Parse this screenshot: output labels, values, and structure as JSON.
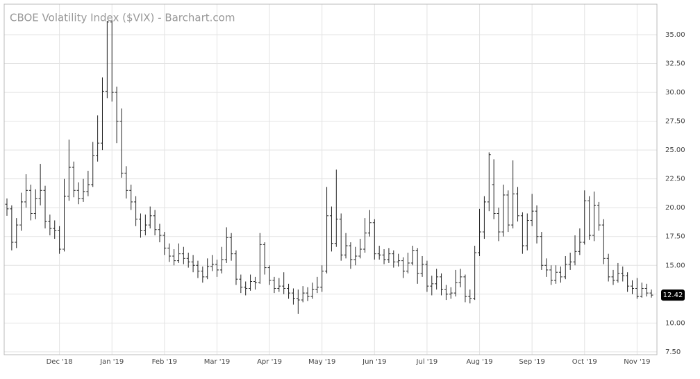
{
  "chart_data": {
    "type": "ohlc",
    "title": "CBOE Volatility Index ($VIX) - Barchart.com",
    "color": "#222222",
    "grid": true,
    "last_color": "#000000",
    "categories": [
      null,
      null,
      null,
      null,
      null,
      null,
      null,
      null,
      null,
      null,
      null,
      "Dec '18",
      null,
      null,
      null,
      null,
      null,
      null,
      null,
      null,
      null,
      null,
      "Jan '19",
      null,
      null,
      null,
      null,
      null,
      null,
      null,
      null,
      null,
      null,
      "Feb '19",
      null,
      null,
      null,
      null,
      null,
      null,
      null,
      null,
      null,
      null,
      "Mar '19",
      null,
      null,
      null,
      null,
      null,
      null,
      null,
      null,
      null,
      null,
      "Apr '19",
      null,
      null,
      null,
      null,
      null,
      null,
      null,
      null,
      null,
      null,
      "May '19",
      null,
      null,
      null,
      null,
      null,
      null,
      null,
      null,
      null,
      null,
      "Jun '19",
      null,
      null,
      null,
      null,
      null,
      null,
      null,
      null,
      null,
      null,
      "Jul '19",
      null,
      null,
      null,
      null,
      null,
      null,
      null,
      null,
      null,
      null,
      "Aug '19",
      null,
      null,
      null,
      null,
      null,
      null,
      null,
      null,
      null,
      null,
      "Sep '19",
      null,
      null,
      null,
      null,
      null,
      null,
      null,
      null,
      null,
      null,
      "Oct '19",
      null,
      null,
      null,
      null,
      null,
      null,
      null,
      null,
      null,
      null,
      "Nov '19",
      null,
      null,
      null
    ],
    "open": [
      20.3,
      19.9,
      17.0,
      18.5,
      20.5,
      21.5,
      19.5,
      20.8,
      21.5,
      18.8,
      18.2,
      18.0,
      16.4,
      21.0,
      23.5,
      21.5,
      20.8,
      21.4,
      22.0,
      24.5,
      25.6,
      30.1,
      36.1,
      30.0,
      27.5,
      23.0,
      21.5,
      20.5,
      19.0,
      18.0,
      18.5,
      19.3,
      18.1,
      17.6,
      16.5,
      15.8,
      15.4,
      16.0,
      15.6,
      15.3,
      15.0,
      14.5,
      14.0,
      14.9,
      15.1,
      14.6,
      15.5,
      17.4,
      16.0,
      13.8,
      13.1,
      13.0,
      13.6,
      13.5,
      16.8,
      14.8,
      13.7,
      13.0,
      13.2,
      13.0,
      12.6,
      12.1,
      12.0,
      12.6,
      12.3,
      12.9,
      13.1,
      14.5,
      19.3,
      16.9,
      19.0,
      15.9,
      16.7,
      15.5,
      15.8,
      16.4,
      17.8,
      18.7,
      16.0,
      15.9,
      15.5,
      16.0,
      15.3,
      15.4,
      14.5,
      15.2,
      16.3,
      14.3,
      15.1,
      13.2,
      13.4,
      14.0,
      12.9,
      12.5,
      12.6,
      13.5,
      14.0,
      12.3,
      12.1,
      16.1,
      17.9,
      20.5,
      22.0,
      19.5,
      17.9,
      21.1,
      18.5,
      21.2,
      19.3,
      16.7,
      18.9,
      19.7,
      17.5,
      15.0,
      14.6,
      13.7,
      14.4,
      14.0,
      15.1,
      15.3,
      16.2,
      17.0,
      20.6,
      17.6,
      20.2,
      18.5,
      15.6,
      14.0,
      13.7,
      14.3,
      14.1,
      13.2,
      13.0,
      12.3,
      13.0,
      12.6
    ],
    "high": [
      20.8,
      20.2,
      19.1,
      21.3,
      22.9,
      22.0,
      21.6,
      23.8,
      21.9,
      19.4,
      18.9,
      18.4,
      22.5,
      25.9,
      24.0,
      22.2,
      22.5,
      23.2,
      25.7,
      28.0,
      31.3,
      36.2,
      36.3,
      30.5,
      28.6,
      23.6,
      22.0,
      21.0,
      19.5,
      19.4,
      20.1,
      19.8,
      18.6,
      17.9,
      16.9,
      16.4,
      16.9,
      16.6,
      16.1,
      15.9,
      15.4,
      14.9,
      15.6,
      15.9,
      15.5,
      16.6,
      18.3,
      17.8,
      16.3,
      14.2,
      13.6,
      14.2,
      14.0,
      17.8,
      17.0,
      15.0,
      14.0,
      13.9,
      14.4,
      13.4,
      13.0,
      12.9,
      13.2,
      13.1,
      13.5,
      14.0,
      15.0,
      21.8,
      20.1,
      23.3,
      19.5,
      17.8,
      17.0,
      16.6,
      17.3,
      19.1,
      19.8,
      19.0,
      16.7,
      16.4,
      16.5,
      16.3,
      16.0,
      15.7,
      16.1,
      16.7,
      16.5,
      15.8,
      15.4,
      14.1,
      14.7,
      14.3,
      13.3,
      13.1,
      14.6,
      14.7,
      14.2,
      12.9,
      16.7,
      19.9,
      21.0,
      24.8,
      24.2,
      20.0,
      22.0,
      21.5,
      24.1,
      21.8,
      19.6,
      19.5,
      21.2,
      20.2,
      17.9,
      15.6,
      15.0,
      15.0,
      14.9,
      15.8,
      16.1,
      17.6,
      18.2,
      21.5,
      21.0,
      21.4,
      20.5,
      19.0,
      16.0,
      14.6,
      15.2,
      14.9,
      14.4,
      13.7,
      13.9,
      13.5,
      13.4,
      12.9
    ],
    "low": [
      19.3,
      16.3,
      16.5,
      18.0,
      20.0,
      18.9,
      19.0,
      20.2,
      18.2,
      17.6,
      17.3,
      16.0,
      16.2,
      20.6,
      20.9,
      20.3,
      20.5,
      21.0,
      21.8,
      24.0,
      25.0,
      29.5,
      29.2,
      25.6,
      22.6,
      20.8,
      19.8,
      18.4,
      17.4,
      17.6,
      18.2,
      17.6,
      17.0,
      15.9,
      15.3,
      15.0,
      15.2,
      15.1,
      14.8,
      14.4,
      13.9,
      13.5,
      13.8,
      14.5,
      14.0,
      14.3,
      15.2,
      15.4,
      13.3,
      12.6,
      12.4,
      12.8,
      12.9,
      13.4,
      14.2,
      13.3,
      12.6,
      12.7,
      12.5,
      12.1,
      11.6,
      10.8,
      11.8,
      11.9,
      12.1,
      12.6,
      12.7,
      14.3,
      16.2,
      16.6,
      15.4,
      15.6,
      14.7,
      15.0,
      15.6,
      16.1,
      17.5,
      15.5,
      15.5,
      15.1,
      15.2,
      14.8,
      14.9,
      13.9,
      14.3,
      15.0,
      13.4,
      14.0,
      12.7,
      12.4,
      12.9,
      12.4,
      12.0,
      12.1,
      12.3,
      13.1,
      11.8,
      11.7,
      12.0,
      15.8,
      17.3,
      19.7,
      19.0,
      17.1,
      17.5,
      17.9,
      18.2,
      18.8,
      16.0,
      16.3,
      18.4,
      16.9,
      14.6,
      14.0,
      13.3,
      13.4,
      13.5,
      13.8,
      14.6,
      15.0,
      15.9,
      16.8,
      17.2,
      17.1,
      18.0,
      15.1,
      13.6,
      13.3,
      13.5,
      13.6,
      12.7,
      12.5,
      12.1,
      12.2,
      12.3,
      12.2
    ],
    "close": [
      19.9,
      17.0,
      18.5,
      20.5,
      21.5,
      19.5,
      20.8,
      21.5,
      18.8,
      18.2,
      18.0,
      16.4,
      21.0,
      23.5,
      21.5,
      20.8,
      21.4,
      22.0,
      24.5,
      25.6,
      30.1,
      36.1,
      30.0,
      27.5,
      23.0,
      21.5,
      20.5,
      19.0,
      18.0,
      18.5,
      19.3,
      18.1,
      17.6,
      16.5,
      15.8,
      15.4,
      16.0,
      15.6,
      15.3,
      15.0,
      14.5,
      14.0,
      14.9,
      15.1,
      14.6,
      15.5,
      17.4,
      16.0,
      13.8,
      13.1,
      13.0,
      13.6,
      13.5,
      16.8,
      14.8,
      13.7,
      13.0,
      13.2,
      13.0,
      12.6,
      12.1,
      12.0,
      12.6,
      12.3,
      12.9,
      13.1,
      14.5,
      19.3,
      16.9,
      19.0,
      15.9,
      16.7,
      15.5,
      15.8,
      16.4,
      17.8,
      18.7,
      16.0,
      15.9,
      15.5,
      16.0,
      15.3,
      15.4,
      14.5,
      15.2,
      16.3,
      14.3,
      15.1,
      13.2,
      13.4,
      14.0,
      12.9,
      12.5,
      12.6,
      13.5,
      14.0,
      12.3,
      12.1,
      16.1,
      17.9,
      20.5,
      24.6,
      19.5,
      17.9,
      21.1,
      18.5,
      21.2,
      19.3,
      16.7,
      18.9,
      19.7,
      17.5,
      15.0,
      14.6,
      13.7,
      14.4,
      14.0,
      15.1,
      15.3,
      16.2,
      17.0,
      20.6,
      17.6,
      20.2,
      18.5,
      15.6,
      14.0,
      13.7,
      14.3,
      14.1,
      13.2,
      13.0,
      12.3,
      13.0,
      12.6,
      12.42
    ],
    "ylim": [
      7.25,
      37.65
    ],
    "yticks": [
      {
        "value": 7.5,
        "label": "7.50"
      },
      {
        "value": 10,
        "label": "10.00"
      },
      {
        "value": 12.5,
        "label": "12.50"
      },
      {
        "value": 15,
        "label": "15.00"
      },
      {
        "value": 17.5,
        "label": "17.50"
      },
      {
        "value": 20,
        "label": "20.00"
      },
      {
        "value": 22.5,
        "label": "22.50"
      },
      {
        "value": 25,
        "label": "25.00"
      },
      {
        "value": 27.5,
        "label": "27.50"
      },
      {
        "value": 30,
        "label": "30.00"
      },
      {
        "value": 32.5,
        "label": "32.50"
      },
      {
        "value": 35,
        "label": "35.00"
      }
    ]
  }
}
